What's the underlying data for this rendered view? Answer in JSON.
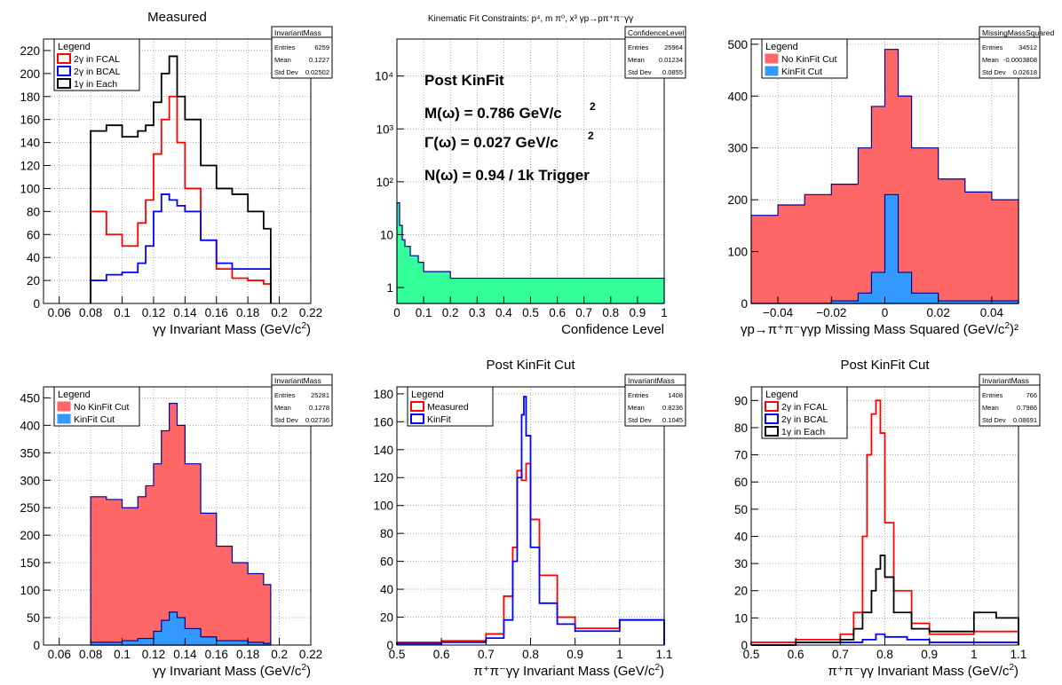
{
  "colors": {
    "red": "#ff0000",
    "blue": "#0000ff",
    "black": "#000000",
    "navy": "#000099",
    "fill_red": "#ff6666",
    "fill_blue": "#3399ff",
    "fill_green": "#33ff99",
    "grid": "#999999"
  },
  "annotations": {
    "post_kinfit": "Post KinFit",
    "mass": "M(ω) = 0.786 GeV/c",
    "width": "Γ(ω) = 0.027 GeV/c",
    "sq": "2",
    "yield": "N(ω) = 0.94 / 1k Trigger"
  },
  "chart_data": [
    {
      "id": "p1",
      "type": "line",
      "title": "Measured",
      "xlabel": "γγ Invariant Mass (GeV/c",
      "xlabel_sup": "2",
      "xlabel_end": ")",
      "xlim": [
        0.05,
        0.22
      ],
      "ylim": [
        0,
        230
      ],
      "log": false,
      "grid": true,
      "xticks": [
        0.06,
        0.08,
        0.1,
        0.12,
        0.14,
        0.16,
        0.18,
        0.2,
        0.22
      ],
      "xtick_labels": [
        "0.06",
        "0.08",
        "0.1",
        "0.12",
        "0.14",
        "0.16",
        "0.18",
        "0.2",
        "0.22"
      ],
      "yticks": [
        0,
        20,
        40,
        60,
        80,
        100,
        120,
        140,
        160,
        180,
        200,
        220
      ],
      "ytick_labels": [
        "0",
        "20",
        "40",
        "60",
        "80",
        "100",
        "120",
        "140",
        "160",
        "180",
        "200",
        "220"
      ],
      "stats": {
        "name": "InvariantMass",
        "rows": [
          [
            "Entries",
            "6259"
          ],
          [
            "Mean",
            "0.1227"
          ],
          [
            "Std Dev",
            "0.02502"
          ]
        ]
      },
      "legend": {
        "title": "Legend",
        "placement": "top-left"
      },
      "series": [
        {
          "name": "2γ in FCAL",
          "color": "#ff0000",
          "fill": null,
          "x": [
            0.08,
            0.09,
            0.1,
            0.11,
            0.115,
            0.12,
            0.125,
            0.13,
            0.135,
            0.14,
            0.15,
            0.16,
            0.17,
            0.18,
            0.19
          ],
          "values": [
            80,
            60,
            50,
            70,
            90,
            130,
            160,
            180,
            140,
            100,
            55,
            30,
            22,
            20,
            17
          ]
        },
        {
          "name": "2γ in BCAL",
          "color": "#0000ff",
          "fill": null,
          "x": [
            0.08,
            0.09,
            0.1,
            0.11,
            0.115,
            0.12,
            0.125,
            0.13,
            0.135,
            0.14,
            0.15,
            0.16,
            0.17,
            0.18,
            0.19
          ],
          "values": [
            20,
            25,
            27,
            35,
            50,
            80,
            95,
            90,
            85,
            80,
            55,
            35,
            30,
            30,
            30
          ]
        },
        {
          "name": "1γ in Each",
          "color": "#000000",
          "fill": null,
          "x": [
            0.08,
            0.09,
            0.1,
            0.11,
            0.115,
            0.12,
            0.125,
            0.13,
            0.135,
            0.14,
            0.15,
            0.16,
            0.17,
            0.18,
            0.19
          ],
          "values": [
            150,
            155,
            145,
            150,
            155,
            175,
            200,
            215,
            180,
            160,
            120,
            100,
            95,
            80,
            65
          ]
        }
      ]
    },
    {
      "id": "p2",
      "type": "line",
      "title": "Kinematic Fit Constraints: p⁴, m π⁰, x³ γp→pπ⁺π⁻γγ",
      "xlabel": "Confidence Level",
      "xlabel_sup": "",
      "xlabel_end": "",
      "xlim": [
        0,
        1
      ],
      "ylim": [
        0.5,
        50000
      ],
      "log": true,
      "grid": true,
      "xticks": [
        0,
        0.1,
        0.2,
        0.3,
        0.4,
        0.5,
        0.6,
        0.7,
        0.8,
        0.9,
        1
      ],
      "xtick_labels": [
        "0",
        "0.1",
        "0.2",
        "0.3",
        "0.4",
        "0.5",
        "0.6",
        "0.7",
        "0.8",
        "0.9",
        "1"
      ],
      "yticks": [
        1,
        10,
        100,
        1000,
        10000
      ],
      "ytick_labels": [
        "1",
        "10",
        "10²",
        "10³",
        "10⁴"
      ],
      "stats": {
        "name": "ConfidenceLevel",
        "rows": [
          [
            "Entries",
            "25964"
          ],
          [
            "Mean",
            "0.01234"
          ],
          [
            "Std Dev",
            "0.0855"
          ]
        ]
      },
      "legend": null,
      "series": [
        {
          "name": "",
          "color": "#000099",
          "fill": "#33ff99",
          "x": [
            0,
            0.01,
            0.02,
            0.03,
            0.05,
            0.08,
            0.1,
            0.15,
            0.2,
            0.3,
            0.5,
            0.7,
            0.9,
            1.0
          ],
          "values": [
            40,
            15,
            8,
            6,
            4,
            3,
            2,
            2,
            1.5,
            1.5,
            1.5,
            1.5,
            1.5,
            1.5
          ]
        }
      ]
    },
    {
      "id": "p3",
      "type": "area",
      "title": "",
      "xlabel": "γp→π⁺π⁻γγp Missing Mass Squared (GeV/c",
      "xlabel_sup": "2",
      "xlabel_end": ")²",
      "xlim": [
        -0.05,
        0.05
      ],
      "ylim": [
        0,
        510
      ],
      "log": false,
      "grid": true,
      "xticks": [
        -0.04,
        -0.02,
        0,
        0.02,
        0.04
      ],
      "xtick_labels": [
        "−0.04",
        "−0.02",
        "0",
        "0.02",
        "0.04"
      ],
      "yticks": [
        0,
        100,
        200,
        300,
        400,
        500
      ],
      "ytick_labels": [
        "0",
        "100",
        "200",
        "300",
        "400",
        "500"
      ],
      "stats": {
        "name": "MissingMassSquared",
        "rows": [
          [
            "Entries",
            "34512"
          ],
          [
            "Mean",
            "-0.0003808"
          ],
          [
            "Std Dev",
            "0.02618"
          ]
        ]
      },
      "legend": {
        "title": "Legend",
        "placement": "top-left"
      },
      "series": [
        {
          "name": "No KinFit Cut",
          "color": "#000099",
          "fill": "#ff6666",
          "x": [
            -0.05,
            -0.04,
            -0.03,
            -0.02,
            -0.01,
            -0.005,
            0,
            0.005,
            0.01,
            0.02,
            0.03,
            0.04,
            0.05
          ],
          "values": [
            170,
            190,
            210,
            230,
            300,
            380,
            490,
            400,
            300,
            240,
            215,
            200,
            190
          ]
        },
        {
          "name": "KinFit Cut",
          "color": "#000099",
          "fill": "#3399ff",
          "x": [
            -0.05,
            -0.02,
            -0.01,
            -0.005,
            0,
            0.005,
            0.01,
            0.02,
            0.05
          ],
          "values": [
            0,
            5,
            20,
            60,
            210,
            60,
            20,
            5,
            0
          ]
        }
      ]
    },
    {
      "id": "p4",
      "type": "area",
      "title": "",
      "xlabel": "γγ Invariant Mass (GeV/c",
      "xlabel_sup": "2",
      "xlabel_end": ")",
      "xlim": [
        0.05,
        0.22
      ],
      "ylim": [
        0,
        470
      ],
      "log": false,
      "grid": true,
      "xticks": [
        0.06,
        0.08,
        0.1,
        0.12,
        0.14,
        0.16,
        0.18,
        0.2,
        0.22
      ],
      "xtick_labels": [
        "0.06",
        "0.08",
        "0.1",
        "0.12",
        "0.14",
        "0.16",
        "0.18",
        "0.2",
        "0.22"
      ],
      "yticks": [
        0,
        50,
        100,
        150,
        200,
        250,
        300,
        350,
        400,
        450
      ],
      "ytick_labels": [
        "0",
        "50",
        "100",
        "150",
        "200",
        "250",
        "300",
        "350",
        "400",
        "450"
      ],
      "stats": {
        "name": "InvariantMass",
        "rows": [
          [
            "Entries",
            "25281"
          ],
          [
            "Mean",
            "0.1278"
          ],
          [
            "Std Dev",
            "0.02736"
          ]
        ]
      },
      "legend": {
        "title": "Legend",
        "placement": "top-left"
      },
      "series": [
        {
          "name": "No KinFit Cut",
          "color": "#000099",
          "fill": "#ff6666",
          "x": [
            0.08,
            0.09,
            0.1,
            0.11,
            0.115,
            0.12,
            0.125,
            0.13,
            0.135,
            0.14,
            0.15,
            0.16,
            0.17,
            0.18,
            0.19
          ],
          "values": [
            270,
            265,
            250,
            270,
            290,
            330,
            390,
            440,
            400,
            330,
            240,
            180,
            150,
            130,
            110
          ]
        },
        {
          "name": "KinFit Cut",
          "color": "#000099",
          "fill": "#3399ff",
          "x": [
            0.08,
            0.1,
            0.11,
            0.12,
            0.125,
            0.13,
            0.135,
            0.14,
            0.15,
            0.16,
            0.18,
            0.19
          ],
          "values": [
            5,
            8,
            12,
            25,
            45,
            60,
            50,
            30,
            15,
            8,
            5,
            3
          ]
        }
      ]
    },
    {
      "id": "p5",
      "type": "line",
      "title": "Post KinFit Cut",
      "xlabel": "π⁺π⁻γγ Invariant Mass (GeV/c",
      "xlabel_sup": "2",
      "xlabel_end": ")",
      "xlim": [
        0.5,
        1.1
      ],
      "ylim": [
        0,
        185
      ],
      "log": false,
      "grid": true,
      "xticks": [
        0.5,
        0.6,
        0.7,
        0.8,
        0.9,
        1,
        1.1
      ],
      "xtick_labels": [
        "0.5",
        "0.6",
        "0.7",
        "0.8",
        "0.9",
        "1",
        "1.1"
      ],
      "yticks": [
        0,
        20,
        40,
        60,
        80,
        100,
        120,
        140,
        160,
        180
      ],
      "ytick_labels": [
        "0",
        "20",
        "40",
        "60",
        "80",
        "100",
        "120",
        "140",
        "160",
        "180"
      ],
      "stats": {
        "name": "InvariantMass",
        "rows": [
          [
            "Entries",
            "1408"
          ],
          [
            "Mean",
            "0.8236"
          ],
          [
            "Std Dev",
            "0.1045"
          ]
        ]
      },
      "legend": {
        "title": "Legend",
        "placement": "top-left"
      },
      "series": [
        {
          "name": "Measured",
          "color": "#ff0000",
          "fill": null,
          "x": [
            0.5,
            0.6,
            0.7,
            0.74,
            0.76,
            0.77,
            0.78,
            0.79,
            0.8,
            0.82,
            0.86,
            0.9,
            1.0,
            1.1
          ],
          "values": [
            2,
            3,
            8,
            35,
            70,
            125,
            118,
            130,
            90,
            50,
            20,
            12,
            18,
            8
          ]
        },
        {
          "name": "KinFit",
          "color": "#0000ff",
          "fill": null,
          "x": [
            0.5,
            0.6,
            0.7,
            0.74,
            0.76,
            0.77,
            0.78,
            0.785,
            0.79,
            0.8,
            0.82,
            0.86,
            0.9,
            1.0,
            1.1
          ],
          "values": [
            1,
            2,
            5,
            18,
            60,
            120,
            165,
            178,
            150,
            70,
            30,
            15,
            10,
            18,
            10
          ]
        }
      ]
    },
    {
      "id": "p6",
      "type": "line",
      "title": "Post KinFit Cut",
      "xlabel": "π⁺π⁻γγ Invariant Mass (GeV/c",
      "xlabel_sup": "2",
      "xlabel_end": ")",
      "xlim": [
        0.5,
        1.1
      ],
      "ylim": [
        0,
        95
      ],
      "log": false,
      "grid": true,
      "xticks": [
        0.5,
        0.6,
        0.7,
        0.8,
        0.9,
        1,
        1.1
      ],
      "xtick_labels": [
        "0.5",
        "0.6",
        "0.7",
        "0.8",
        "0.9",
        "1",
        "1.1"
      ],
      "yticks": [
        0,
        10,
        20,
        30,
        40,
        50,
        60,
        70,
        80,
        90
      ],
      "ytick_labels": [
        "0",
        "10",
        "20",
        "30",
        "40",
        "50",
        "60",
        "70",
        "80",
        "90"
      ],
      "stats": {
        "name": "InvariantMass",
        "rows": [
          [
            "Entries",
            "766"
          ],
          [
            "Mean",
            "0.7986"
          ],
          [
            "Std Dev",
            "0.08691"
          ]
        ]
      },
      "legend": {
        "title": "Legend",
        "placement": "top-left"
      },
      "series": [
        {
          "name": "2γ in FCAL",
          "color": "#ff0000",
          "fill": null,
          "x": [
            0.5,
            0.6,
            0.7,
            0.73,
            0.75,
            0.76,
            0.77,
            0.78,
            0.79,
            0.8,
            0.82,
            0.86,
            0.9,
            1.0,
            1.1
          ],
          "values": [
            1,
            2,
            4,
            12,
            40,
            70,
            85,
            90,
            78,
            45,
            20,
            8,
            4,
            5,
            2
          ]
        },
        {
          "name": "2γ in BCAL",
          "color": "#0000ff",
          "fill": null,
          "x": [
            0.5,
            0.6,
            0.7,
            0.75,
            0.78,
            0.8,
            0.85,
            0.9,
            1.0,
            1.1
          ],
          "values": [
            0,
            1,
            1,
            2,
            4,
            3,
            2,
            1,
            1,
            1
          ]
        },
        {
          "name": "1γ in Each",
          "color": "#000000",
          "fill": null,
          "x": [
            0.5,
            0.6,
            0.7,
            0.73,
            0.75,
            0.77,
            0.78,
            0.79,
            0.8,
            0.82,
            0.86,
            0.9,
            1.0,
            1.05,
            1.1
          ],
          "values": [
            0,
            1,
            2,
            6,
            12,
            20,
            28,
            33,
            25,
            12,
            6,
            5,
            12,
            10,
            5
          ]
        }
      ]
    }
  ]
}
